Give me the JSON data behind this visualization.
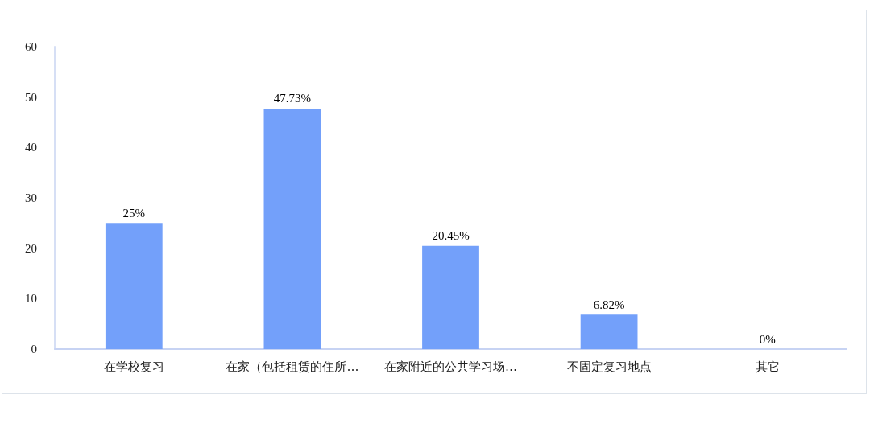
{
  "chart_data": {
    "type": "bar",
    "categories": [
      "在学校复习",
      "在家（包括租赁的住所…",
      "在家附近的公共学习场…",
      "不固定复习地点",
      "其它"
    ],
    "values": [
      25,
      47.73,
      20.45,
      6.82,
      0
    ],
    "value_labels": [
      "25%",
      "47.73%",
      "20.45%",
      "6.82%",
      "0%"
    ],
    "color": "#73a0fa",
    "ylim": [
      0,
      60
    ],
    "yticks": [
      0,
      10,
      20,
      30,
      40,
      50,
      60
    ],
    "grid": false
  }
}
